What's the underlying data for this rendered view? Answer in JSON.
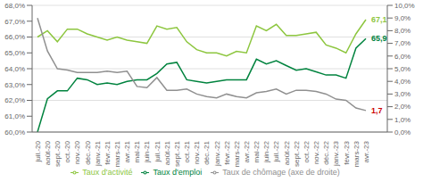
{
  "chart_data": {
    "type": "line",
    "categories": [
      "juil.-20",
      "août-20",
      "sept.-20",
      "oct.-20",
      "nov.-20",
      "déc.-20",
      "janv.-21",
      "févr.-21",
      "mars-21",
      "avr.-21",
      "mai-21",
      "juin-21",
      "juil.-21",
      "août-21",
      "sept.-21",
      "oct.-21",
      "nov.-21",
      "déc.-21",
      "janv.-22",
      "févr.-22",
      "mars-22",
      "avr.-22",
      "mai-22",
      "juin-22",
      "juil.-22",
      "août-22",
      "sept.-22",
      "oct.-22",
      "nov.-22",
      "déc.-22",
      "janv.-23",
      "févr.-23",
      "mars-23",
      "avr.-23"
    ],
    "series": [
      {
        "name": "Taux d'activité",
        "color": "#8DC63F",
        "values": [
          66.0,
          66.4,
          65.7,
          66.5,
          66.5,
          66.2,
          66.0,
          65.8,
          66.0,
          65.8,
          65.7,
          65.6,
          66.7,
          66.5,
          66.6,
          65.7,
          65.2,
          65.0,
          65.0,
          64.8,
          65.1,
          65.0,
          66.7,
          66.4,
          66.8,
          66.1,
          66.1,
          66.2,
          66.3,
          65.5,
          65.3,
          65.0,
          66.2,
          67.1
        ]
      },
      {
        "name": "Taux d'emploi",
        "color": "#00833E",
        "values": [
          60.0,
          62.1,
          62.6,
          62.6,
          63.4,
          63.3,
          63.0,
          63.1,
          63.0,
          63.2,
          63.3,
          63.3,
          63.7,
          64.3,
          64.4,
          63.3,
          63.2,
          63.1,
          63.2,
          63.3,
          63.3,
          63.3,
          64.6,
          64.3,
          64.5,
          64.2,
          63.9,
          64.0,
          63.8,
          63.6,
          63.6,
          63.4,
          65.3,
          65.9
        ]
      },
      {
        "name": "Taux de chômage (axe de droite)",
        "color": "#909090",
        "axis": "y2",
        "values": [
          9.0,
          6.4,
          5.0,
          4.9,
          4.7,
          4.7,
          4.7,
          4.8,
          4.7,
          4.8,
          3.6,
          3.5,
          4.3,
          3.3,
          3.3,
          3.4,
          3.0,
          2.8,
          2.7,
          3.0,
          2.8,
          2.7,
          3.1,
          3.2,
          3.4,
          3.0,
          3.3,
          3.3,
          3.2,
          3.0,
          2.6,
          2.5,
          1.9,
          1.7
        ]
      }
    ],
    "ylim": [
      60.0,
      68.0
    ],
    "yticks": [
      {
        "value": 60.0,
        "label": "60,0%"
      },
      {
        "value": 61.0,
        "label": "61,0%"
      },
      {
        "value": 62.0,
        "label": "62,0%"
      },
      {
        "value": 63.0,
        "label": "63,0%"
      },
      {
        "value": 64.0,
        "label": "64,0%"
      },
      {
        "value": 65.0,
        "label": "65,0%"
      },
      {
        "value": 66.0,
        "label": "66,0%"
      },
      {
        "value": 67.0,
        "label": "67,0%"
      },
      {
        "value": 68.0,
        "label": "68,0%"
      }
    ],
    "y2lim": [
      0.0,
      10.0
    ],
    "y2ticks": [
      {
        "value": 0.0,
        "label": "0,0%"
      },
      {
        "value": 1.0,
        "label": "1,0%"
      },
      {
        "value": 2.0,
        "label": "2,0%"
      },
      {
        "value": 3.0,
        "label": "3,0%"
      },
      {
        "value": 4.0,
        "label": "4,0%"
      },
      {
        "value": 5.0,
        "label": "5,0%"
      },
      {
        "value": 6.0,
        "label": "6,0%"
      },
      {
        "value": 7.0,
        "label": "7,0%"
      },
      {
        "value": 8.0,
        "label": "8,0%"
      },
      {
        "value": 9.0,
        "label": "9,0%"
      },
      {
        "value": 10.0,
        "label": "10,0%"
      }
    ],
    "grid": true,
    "legend": "bottom",
    "annotations": [
      {
        "text": "67,1",
        "x": "avr.-23",
        "y": 67.1,
        "color": "#8DC63F"
      },
      {
        "text": "65,9",
        "x": "avr.-23",
        "y": 65.9,
        "color": "#00833E"
      },
      {
        "text": "1,7",
        "x": "avr.-23",
        "y": 1.7,
        "color": "#CC0000",
        "axis": "y2"
      }
    ]
  }
}
